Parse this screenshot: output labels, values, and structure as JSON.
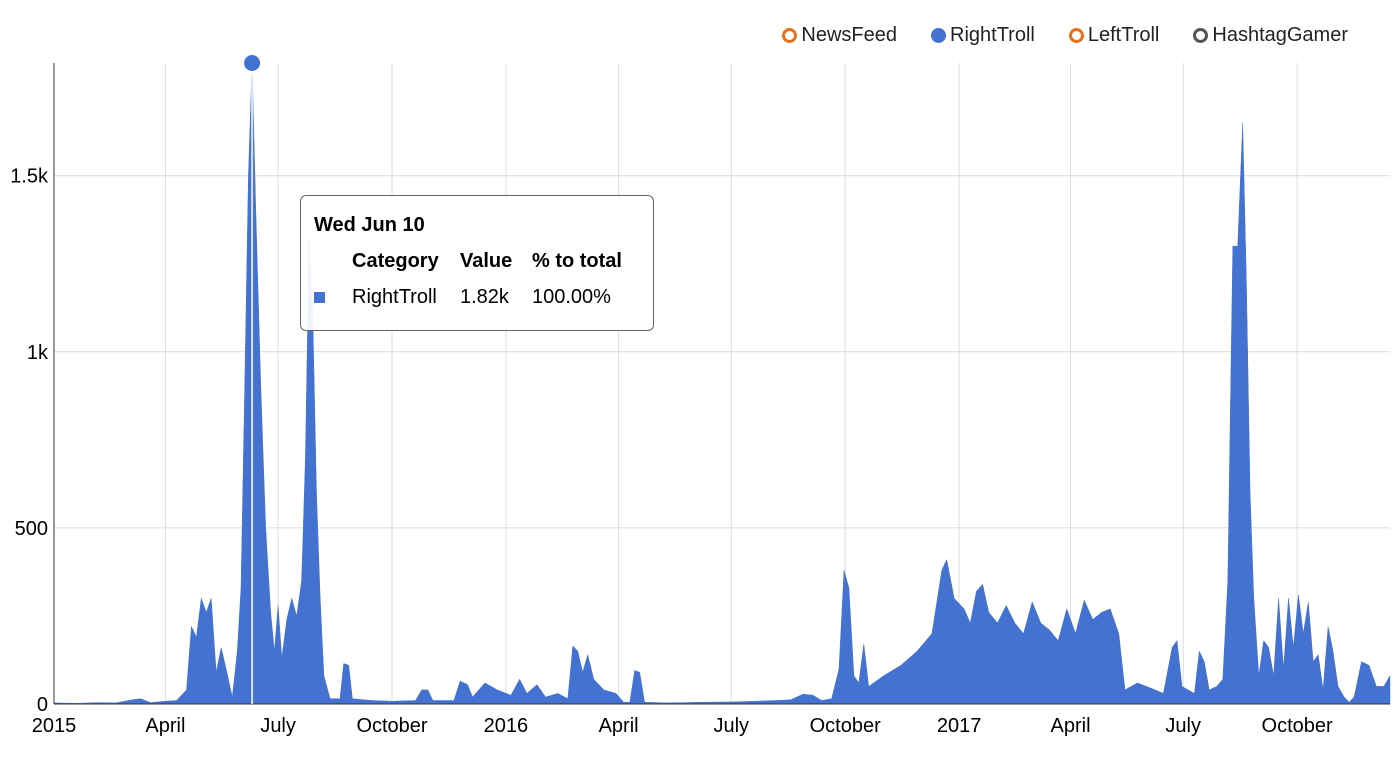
{
  "legend": {
    "items": [
      {
        "label": "NewsFeed",
        "color": "#e8701a",
        "filled": false
      },
      {
        "label": "RightTroll",
        "color": "#4472d0",
        "filled": true
      },
      {
        "label": "LeftTroll",
        "color": "#e8701a",
        "filled": false
      },
      {
        "label": "HashtagGamer",
        "color": "#555555",
        "filled": false
      }
    ]
  },
  "tooltip": {
    "date": "Wed Jun 10",
    "headers": {
      "category": "Category",
      "value": "Value",
      "percent": "% to total"
    },
    "row": {
      "category": "RightTroll",
      "value": "1.82k",
      "percent": "100.00%",
      "color": "#4472d0"
    }
  },
  "chart_data": {
    "type": "area",
    "x_axis": {
      "range": [
        "2015-01-01",
        "2017-12-15"
      ],
      "ticks": [
        {
          "date": "2015-01-01",
          "label": "2015"
        },
        {
          "date": "2015-04-01",
          "label": "April"
        },
        {
          "date": "2015-07-01",
          "label": "July"
        },
        {
          "date": "2015-10-01",
          "label": "October"
        },
        {
          "date": "2016-01-01",
          "label": "2016"
        },
        {
          "date": "2016-04-01",
          "label": "April"
        },
        {
          "date": "2016-07-01",
          "label": "July"
        },
        {
          "date": "2016-10-01",
          "label": "October"
        },
        {
          "date": "2017-01-01",
          "label": "2017"
        },
        {
          "date": "2017-04-01",
          "label": "April"
        },
        {
          "date": "2017-07-01",
          "label": "July"
        },
        {
          "date": "2017-10-01",
          "label": "October"
        }
      ]
    },
    "y_axis": {
      "range": [
        0,
        1820
      ],
      "ticks": [
        {
          "value": 0,
          "label": "0"
        },
        {
          "value": 500,
          "label": "500"
        },
        {
          "value": 1000,
          "label": "1k"
        },
        {
          "value": 1500,
          "label": "1.5k"
        }
      ]
    },
    "grid": true,
    "legend_position": "top-right",
    "highlight": {
      "date": "2015-06-10",
      "value": 1820
    },
    "series": [
      {
        "name": "RightTroll",
        "color": "#4472d0",
        "points": [
          [
            "2015-01-01",
            3
          ],
          [
            "2015-01-20",
            2
          ],
          [
            "2015-02-05",
            4
          ],
          [
            "2015-02-20",
            3
          ],
          [
            "2015-03-05",
            12
          ],
          [
            "2015-03-12",
            15
          ],
          [
            "2015-03-20",
            4
          ],
          [
            "2015-04-01",
            8
          ],
          [
            "2015-04-10",
            10
          ],
          [
            "2015-04-18",
            40
          ],
          [
            "2015-04-22",
            220
          ],
          [
            "2015-04-26",
            190
          ],
          [
            "2015-04-30",
            300
          ],
          [
            "2015-05-04",
            260
          ],
          [
            "2015-05-08",
            300
          ],
          [
            "2015-05-12",
            90
          ],
          [
            "2015-05-16",
            160
          ],
          [
            "2015-05-20",
            100
          ],
          [
            "2015-05-25",
            20
          ],
          [
            "2015-05-29",
            150
          ],
          [
            "2015-06-01",
            330
          ],
          [
            "2015-06-04",
            900
          ],
          [
            "2015-06-07",
            1500
          ],
          [
            "2015-06-10",
            1820
          ],
          [
            "2015-06-13",
            1400
          ],
          [
            "2015-06-17",
            900
          ],
          [
            "2015-06-21",
            500
          ],
          [
            "2015-06-25",
            260
          ],
          [
            "2015-06-28",
            150
          ],
          [
            "2015-07-01",
            280
          ],
          [
            "2015-07-04",
            130
          ],
          [
            "2015-07-08",
            240
          ],
          [
            "2015-07-12",
            300
          ],
          [
            "2015-07-16",
            250
          ],
          [
            "2015-07-20",
            350
          ],
          [
            "2015-07-23",
            700
          ],
          [
            "2015-07-26",
            1330
          ],
          [
            "2015-07-29",
            1100
          ],
          [
            "2015-08-01",
            600
          ],
          [
            "2015-08-04",
            300
          ],
          [
            "2015-08-07",
            80
          ],
          [
            "2015-08-12",
            15
          ],
          [
            "2015-08-20",
            15
          ],
          [
            "2015-08-23",
            115
          ],
          [
            "2015-08-27",
            110
          ],
          [
            "2015-08-30",
            15
          ],
          [
            "2015-09-15",
            10
          ],
          [
            "2015-10-01",
            8
          ],
          [
            "2015-10-20",
            10
          ],
          [
            "2015-10-25",
            40
          ],
          [
            "2015-10-30",
            40
          ],
          [
            "2015-11-03",
            10
          ],
          [
            "2015-11-20",
            10
          ],
          [
            "2015-11-25",
            65
          ],
          [
            "2015-12-01",
            55
          ],
          [
            "2015-12-05",
            20
          ],
          [
            "2015-12-15",
            60
          ],
          [
            "2015-12-25",
            40
          ],
          [
            "2016-01-05",
            25
          ],
          [
            "2016-01-12",
            70
          ],
          [
            "2016-01-18",
            30
          ],
          [
            "2016-01-26",
            55
          ],
          [
            "2016-02-02",
            20
          ],
          [
            "2016-02-12",
            30
          ],
          [
            "2016-02-20",
            15
          ],
          [
            "2016-02-24",
            165
          ],
          [
            "2016-02-28",
            150
          ],
          [
            "2016-03-03",
            90
          ],
          [
            "2016-03-07",
            140
          ],
          [
            "2016-03-12",
            70
          ],
          [
            "2016-03-20",
            40
          ],
          [
            "2016-03-30",
            30
          ],
          [
            "2016-04-05",
            5
          ],
          [
            "2016-04-10",
            5
          ],
          [
            "2016-04-14",
            95
          ],
          [
            "2016-04-18",
            90
          ],
          [
            "2016-04-22",
            5
          ],
          [
            "2016-05-10",
            3
          ],
          [
            "2016-06-10",
            5
          ],
          [
            "2016-07-01",
            6
          ],
          [
            "2016-07-20",
            8
          ],
          [
            "2016-08-05",
            10
          ],
          [
            "2016-08-18",
            12
          ],
          [
            "2016-08-28",
            28
          ],
          [
            "2016-09-05",
            25
          ],
          [
            "2016-09-12",
            10
          ],
          [
            "2016-09-20",
            15
          ],
          [
            "2016-09-26",
            100
          ],
          [
            "2016-09-30",
            380
          ],
          [
            "2016-10-04",
            330
          ],
          [
            "2016-10-08",
            80
          ],
          [
            "2016-10-12",
            60
          ],
          [
            "2016-10-16",
            170
          ],
          [
            "2016-10-20",
            50
          ],
          [
            "2016-11-01",
            80
          ],
          [
            "2016-11-15",
            110
          ],
          [
            "2016-11-28",
            150
          ],
          [
            "2016-12-10",
            200
          ],
          [
            "2016-12-18",
            380
          ],
          [
            "2016-12-22",
            410
          ],
          [
            "2016-12-28",
            300
          ],
          [
            "2017-01-05",
            270
          ],
          [
            "2017-01-10",
            230
          ],
          [
            "2017-01-15",
            320
          ],
          [
            "2017-01-20",
            340
          ],
          [
            "2017-01-25",
            260
          ],
          [
            "2017-02-01",
            230
          ],
          [
            "2017-02-08",
            280
          ],
          [
            "2017-02-15",
            230
          ],
          [
            "2017-02-22",
            200
          ],
          [
            "2017-03-01",
            290
          ],
          [
            "2017-03-08",
            230
          ],
          [
            "2017-03-15",
            210
          ],
          [
            "2017-03-22",
            180
          ],
          [
            "2017-03-29",
            270
          ],
          [
            "2017-04-05",
            200
          ],
          [
            "2017-04-12",
            295
          ],
          [
            "2017-04-19",
            240
          ],
          [
            "2017-04-26",
            260
          ],
          [
            "2017-05-03",
            270
          ],
          [
            "2017-05-10",
            200
          ],
          [
            "2017-05-15",
            40
          ],
          [
            "2017-05-25",
            60
          ],
          [
            "2017-06-05",
            45
          ],
          [
            "2017-06-15",
            30
          ],
          [
            "2017-06-22",
            160
          ],
          [
            "2017-06-26",
            180
          ],
          [
            "2017-06-30",
            50
          ],
          [
            "2017-07-05",
            40
          ],
          [
            "2017-07-10",
            30
          ],
          [
            "2017-07-14",
            150
          ],
          [
            "2017-07-18",
            120
          ],
          [
            "2017-07-22",
            40
          ],
          [
            "2017-07-28",
            50
          ],
          [
            "2017-08-02",
            70
          ],
          [
            "2017-08-06",
            350
          ],
          [
            "2017-08-10",
            1300
          ],
          [
            "2017-08-14",
            1300
          ],
          [
            "2017-08-18",
            1650
          ],
          [
            "2017-08-21",
            1200
          ],
          [
            "2017-08-24",
            600
          ],
          [
            "2017-08-27",
            300
          ],
          [
            "2017-08-31",
            80
          ],
          [
            "2017-09-04",
            180
          ],
          [
            "2017-09-08",
            160
          ],
          [
            "2017-09-12",
            80
          ],
          [
            "2017-09-16",
            300
          ],
          [
            "2017-09-20",
            100
          ],
          [
            "2017-09-24",
            300
          ],
          [
            "2017-09-28",
            160
          ],
          [
            "2017-10-02",
            310
          ],
          [
            "2017-10-06",
            200
          ],
          [
            "2017-10-10",
            290
          ],
          [
            "2017-10-14",
            120
          ],
          [
            "2017-10-18",
            140
          ],
          [
            "2017-10-22",
            40
          ],
          [
            "2017-10-26",
            220
          ],
          [
            "2017-10-30",
            150
          ],
          [
            "2017-11-03",
            50
          ],
          [
            "2017-11-08",
            20
          ],
          [
            "2017-11-12",
            5
          ],
          [
            "2017-11-16",
            20
          ],
          [
            "2017-11-22",
            120
          ],
          [
            "2017-11-28",
            110
          ],
          [
            "2017-12-04",
            50
          ],
          [
            "2017-12-10",
            50
          ],
          [
            "2017-12-15",
            80
          ]
        ]
      }
    ]
  }
}
